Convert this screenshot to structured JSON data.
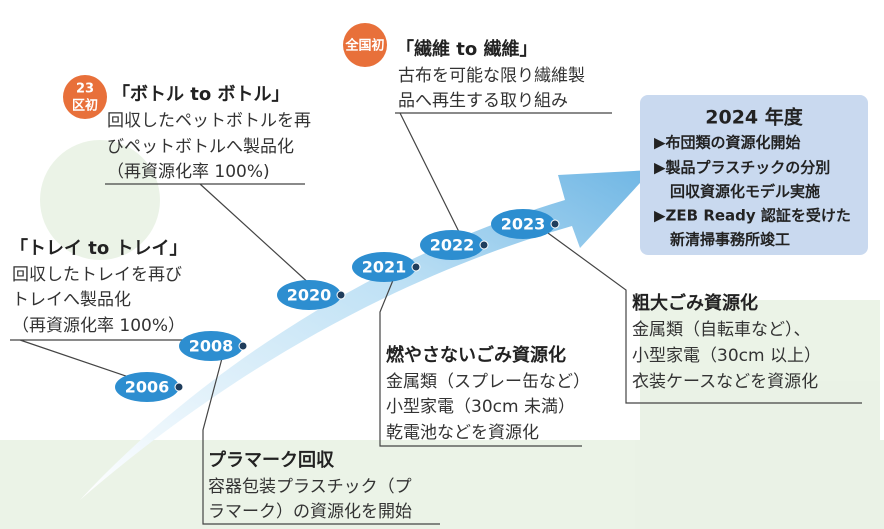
{
  "summary": {
    "title": "2024 年度",
    "items": [
      "▶布団類の資源化開始",
      "▶製品プラスチックの分別",
      "回収資源化モデル実施",
      "▶ZEB Ready 認証を受けた",
      "新清掃事務所竣工"
    ]
  },
  "years": [
    "2006",
    "2008",
    "2020",
    "2021",
    "2022",
    "2023"
  ],
  "notes": [
    {
      "badge": [
        "23",
        "区初"
      ],
      "title": "「ボトル to ボトル」",
      "lines": [
        "回収したペットボトルを再",
        "びペットボトルへ製品化",
        "（再資源化率 100%)"
      ]
    },
    {
      "badge": [
        "全国初"
      ],
      "title": "「繊維 to 繊維」",
      "lines": [
        "古布を可能な限り繊維製",
        "品へ再生する取り組み"
      ]
    },
    {
      "title": "「トレイ to トレイ」",
      "lines": [
        "回収したトレイを再び",
        "トレイへ製品化",
        "（再資源化率 100%）"
      ]
    },
    {
      "title": "燃やさないごみ資源化",
      "lines": [
        "金属類（スプレー缶など）",
        "小型家電（30cm 未満）",
        "乾電池などを資源化"
      ]
    },
    {
      "title": "プラマーク回収",
      "lines": [
        "容器包装プラスチック（プ",
        "ラマーク）の資源化を開始"
      ]
    },
    {
      "title": "粗大ごみ資源化",
      "lines": [
        "金属類（自転車など）、",
        "小型家電（30cm 以上）",
        "衣装ケースなどを資源化"
      ]
    }
  ]
}
